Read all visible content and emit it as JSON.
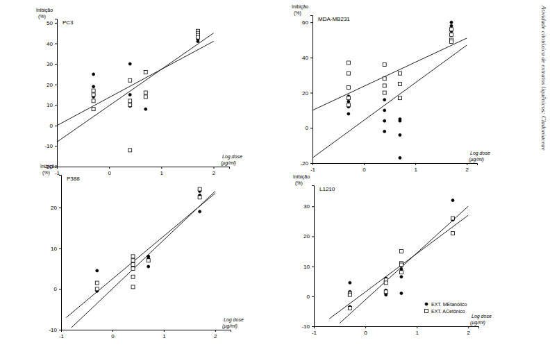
{
  "running_head": "Atividade citotóxica de extratos liquênicos: Cladoniaceae",
  "chart_data": [
    {
      "type": "scatter",
      "title": "PC3",
      "y_label": "Inibição (%)",
      "x_label": "Log dose (µg/ml)",
      "xlim": [
        -1,
        2.3
      ],
      "xticks": [
        -1,
        0,
        1,
        2
      ],
      "ylim": [
        -20,
        52
      ],
      "yticks": [
        -20,
        -10,
        0,
        10,
        20,
        30,
        40,
        50
      ],
      "series": [
        {
          "color": "#000000",
          "marker": "circle",
          "x": [
            -0.3,
            -0.3,
            -0.3,
            -0.3,
            0.4,
            0.4,
            0.4,
            0.4,
            0.7,
            0.7,
            1.7,
            1.7,
            1.7,
            1.7
          ],
          "values": [
            25,
            19,
            14,
            12,
            30,
            15,
            10,
            9.5,
            14,
            8,
            44,
            43,
            42,
            41
          ]
        },
        {
          "color": "#000000",
          "marker": "square-open",
          "x": [
            -0.3,
            -0.3,
            -0.3,
            -0.3,
            0.4,
            0.4,
            0.4,
            0.4,
            0.7,
            0.7,
            0.7,
            1.7,
            1.7,
            1.7,
            1.7
          ],
          "values": [
            17,
            15,
            12,
            8,
            22,
            12,
            10,
            -12,
            26,
            16,
            14,
            46,
            45,
            44,
            43
          ]
        }
      ],
      "trend_lines": [
        {
          "color": "#000000",
          "x": [
            -1,
            2
          ],
          "values": [
            0,
            41
          ]
        },
        {
          "color": "#000000",
          "x": [
            -1,
            2
          ],
          "values": [
            -8,
            45
          ]
        }
      ]
    },
    {
      "type": "scatter",
      "title": "MDA-MB231",
      "y_label": "Inibição (%)",
      "x_label": "Log dose (µg/ml)",
      "xlim": [
        -1,
        2.2
      ],
      "xticks": [
        -1,
        0,
        1,
        2
      ],
      "ylim": [
        -20,
        64
      ],
      "yticks": [
        -20,
        0,
        20,
        40,
        60
      ],
      "series": [
        {
          "color": "#000000",
          "marker": "circle",
          "x": [
            -0.3,
            -0.3,
            -0.3,
            -0.3,
            0.4,
            0.4,
            0.4,
            0.4,
            0.7,
            0.7,
            0.7,
            0.7,
            1.7,
            1.7,
            1.7,
            1.7
          ],
          "values": [
            18,
            15,
            12,
            8,
            16,
            10,
            4,
            -2,
            5,
            4,
            -4,
            -17,
            60,
            58,
            55,
            50
          ]
        },
        {
          "color": "#000000",
          "marker": "square-open",
          "x": [
            -0.3,
            -0.3,
            -0.3,
            -0.3,
            -0.3,
            0.4,
            0.4,
            0.4,
            0.4,
            0.7,
            0.7,
            0.7,
            1.7,
            1.7,
            1.7,
            1.7
          ],
          "values": [
            37,
            31,
            23,
            17,
            13,
            36,
            28,
            24,
            20,
            31,
            25,
            17,
            56,
            53,
            50,
            49
          ]
        }
      ],
      "trend_lines": [
        {
          "color": "#000000",
          "x": [
            -1,
            2
          ],
          "values": [
            10,
            51
          ]
        },
        {
          "color": "#000000",
          "x": [
            -1,
            2
          ],
          "values": [
            -17,
            47
          ]
        }
      ]
    },
    {
      "type": "scatter",
      "title": "P388",
      "y_label": "Inibição (%)",
      "x_label": "Log dose (µg/ml)",
      "xlim": [
        -1,
        2.3
      ],
      "xticks": [
        -1,
        0,
        1,
        2
      ],
      "ylim": [
        -10,
        28
      ],
      "yticks": [
        -10,
        0,
        10,
        20
      ],
      "series": [
        {
          "color": "#000000",
          "marker": "circle",
          "x": [
            -0.3,
            -0.3,
            0.7,
            0.7,
            0.7,
            0.7,
            1.7,
            1.7,
            1.7
          ],
          "values": [
            4.5,
            -0.5,
            8,
            7.5,
            7,
            5.5,
            24,
            23,
            19
          ]
        },
        {
          "color": "#000000",
          "marker": "square-open",
          "x": [
            -0.3,
            -0.3,
            0.4,
            0.4,
            0.4,
            0.4,
            0.4,
            0.4,
            0.7,
            1.7,
            1.7
          ],
          "values": [
            1.5,
            0,
            8,
            7,
            6,
            5,
            3,
            0.5,
            7,
            24.5,
            22.5
          ]
        }
      ],
      "trend_lines": [
        {
          "color": "#000000",
          "x": [
            -0.9,
            2
          ],
          "values": [
            -7,
            23.5
          ]
        },
        {
          "color": "#000000",
          "x": [
            -0.8,
            2
          ],
          "values": [
            -9.5,
            24
          ]
        }
      ]
    },
    {
      "type": "scatter",
      "title": "L1210",
      "y_label": "Inibição (%)",
      "x_label": "Log dose (µg/ml)",
      "xlim": [
        -1,
        2.2
      ],
      "xticks": [
        -1,
        0,
        1,
        2
      ],
      "ylim": [
        -10,
        37
      ],
      "yticks": [
        -10,
        0,
        10,
        20,
        30
      ],
      "legend": "lower right",
      "series": [
        {
          "name": "EXT. MEtanólico",
          "color": "#000000",
          "marker": "circle",
          "x": [
            -0.3,
            -0.3,
            -0.3,
            0.4,
            0.4,
            0.4,
            0.4,
            0.4,
            0.7,
            0.7,
            0.7,
            0.7,
            1.7,
            1.7,
            1.7
          ],
          "values": [
            4.5,
            1.5,
            -3.5,
            6,
            5,
            2,
            1,
            0.5,
            10,
            9,
            6.5,
            1,
            32,
            26,
            25.5
          ]
        },
        {
          "name": "EXT. ACetônico",
          "color": "#000000",
          "marker": "square-open",
          "x": [
            -0.3,
            -0.3,
            -0.3,
            0.4,
            0.4,
            0.4,
            0.7,
            0.7,
            0.7,
            0.7,
            1.7,
            1.7
          ],
          "values": [
            1,
            0.5,
            -4,
            5.5,
            4.5,
            1.5,
            15,
            11,
            8,
            10.5,
            26,
            21
          ]
        }
      ],
      "trend_lines": [
        {
          "color": "#000000",
          "x": [
            -0.7,
            2
          ],
          "values": [
            -7.5,
            27
          ]
        },
        {
          "color": "#000000",
          "x": [
            -0.5,
            2
          ],
          "values": [
            -9,
            30
          ]
        }
      ]
    }
  ]
}
